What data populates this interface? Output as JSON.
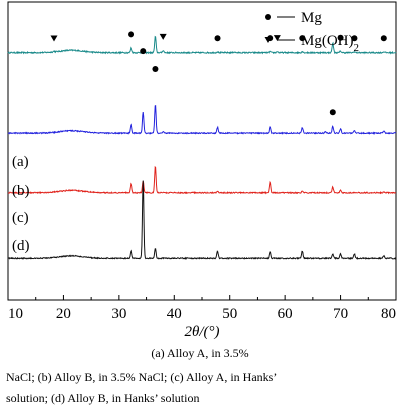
{
  "chart_data": {
    "type": "line",
    "xlabel": "2θ/(°)",
    "xlim": [
      10,
      80
    ],
    "x_ticks": [
      "10",
      "20",
      "30",
      "40",
      "50",
      "60",
      "70",
      "80"
    ],
    "legend": [
      {
        "marker": "circle",
        "name": "Mg"
      },
      {
        "marker": "triangle-down",
        "name": "Mg(OH)2"
      }
    ],
    "legend_position": "top-right",
    "series": [
      {
        "name": "(a)",
        "color": "#1a8a8a",
        "baseline": 0.83,
        "noise": 0.35,
        "peaks": [
          [
            18.3,
            0.4
          ],
          [
            32.2,
            2.5
          ],
          [
            34.4,
            0.6
          ],
          [
            36.6,
            8.5
          ],
          [
            38.0,
            1.2
          ],
          [
            47.8,
            0.5
          ],
          [
            50.8,
            0.4
          ],
          [
            57.3,
            0.6
          ],
          [
            58.6,
            0.6
          ],
          [
            63.1,
            0.6
          ],
          [
            68.6,
            5.0
          ],
          [
            70.0,
            0.8
          ],
          [
            72.5,
            0.5
          ],
          [
            77.8,
            0.5
          ]
        ]
      },
      {
        "name": "(b)",
        "color": "#2222dd",
        "baseline": 0.56,
        "noise": 0.3,
        "peaks": [
          [
            32.2,
            4.5
          ],
          [
            34.4,
            11.0
          ],
          [
            36.6,
            15.0
          ],
          [
            38.0,
            0.8
          ],
          [
            47.8,
            3.0
          ],
          [
            57.3,
            3.2
          ],
          [
            63.1,
            3.0
          ],
          [
            67.3,
            0.8
          ],
          [
            68.6,
            3.6
          ],
          [
            70.0,
            2.2
          ],
          [
            72.5,
            1.2
          ],
          [
            77.8,
            1.2
          ]
        ]
      },
      {
        "name": "(c)",
        "color": "#e0231c",
        "baseline": 0.36,
        "noise": 0.3,
        "peaks": [
          [
            32.2,
            4.8
          ],
          [
            34.4,
            6.0
          ],
          [
            36.6,
            14.0
          ],
          [
            47.8,
            0.8
          ],
          [
            57.3,
            5.6
          ],
          [
            63.1,
            0.8
          ],
          [
            68.6,
            3.0
          ],
          [
            70.0,
            1.3
          ],
          [
            77.8,
            0.5
          ]
        ]
      },
      {
        "name": "(d)",
        "color": "#111111",
        "baseline": 0.14,
        "noise": 0.3,
        "peaks": [
          [
            32.2,
            4.0
          ],
          [
            34.4,
            40.0
          ],
          [
            36.6,
            5.0
          ],
          [
            47.8,
            3.8
          ],
          [
            57.3,
            3.5
          ],
          [
            63.1,
            3.8
          ],
          [
            68.6,
            2.4
          ],
          [
            70.0,
            2.2
          ],
          [
            72.5,
            2.2
          ],
          [
            77.8,
            1.3
          ]
        ]
      }
    ],
    "markers_mg": [
      32.2,
      34.4,
      36.6,
      47.8,
      57.3,
      63.1,
      68.6,
      70.0,
      72.5,
      77.8
    ],
    "markers_mgoh2": [
      18.3,
      38.0,
      58.6
    ]
  },
  "caption": {
    "line1": "(a) Alloy A, in 3.5%",
    "line2": "NaCl; (b) Alloy B, in 3.5% NaCl; (c) Alloy A, in Hanks’",
    "line3": "solution; (d) Alloy B, in Hanks’ solution"
  }
}
